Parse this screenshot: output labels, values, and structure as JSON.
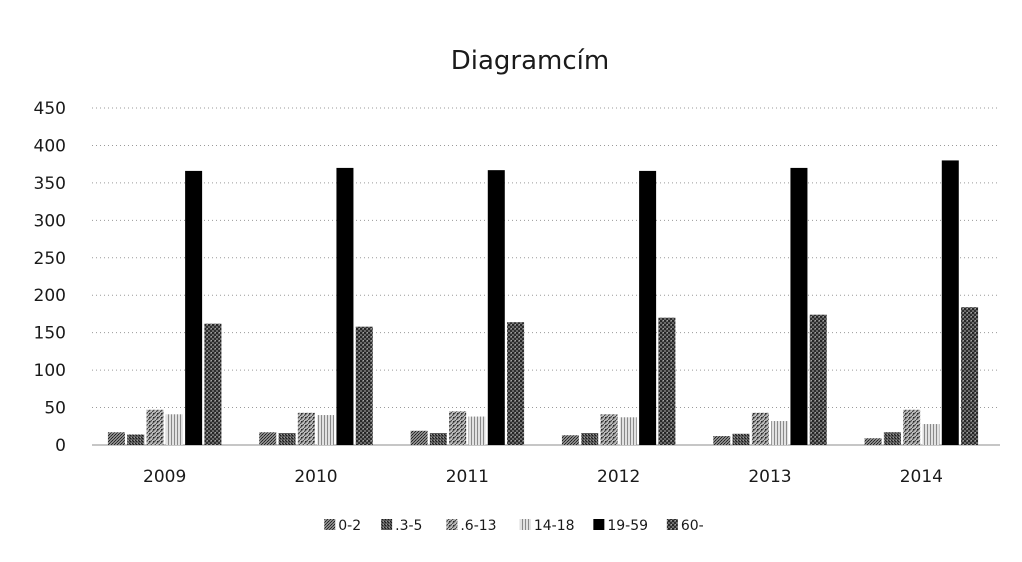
{
  "chart_data": {
    "type": "bar",
    "title": "Diagramcím",
    "categories": [
      "2009",
      "2010",
      "2011",
      "2012",
      "2013",
      "2014"
    ],
    "series": [
      {
        "name": "0-2",
        "values": [
          17,
          17,
          19,
          13,
          12,
          9
        ],
        "pattern": "dots",
        "color": "#6b6b6b"
      },
      {
        "name": ".3-5",
        "values": [
          14,
          16,
          16,
          16,
          15,
          17
        ],
        "pattern": "dots",
        "color": "#4a4a4a"
      },
      {
        "name": ".6-13",
        "values": [
          47,
          43,
          45,
          41,
          43,
          47
        ],
        "pattern": "hatch",
        "color": "#7a7a7a"
      },
      {
        "name": "14-18",
        "values": [
          41,
          40,
          38,
          37,
          32,
          28
        ],
        "pattern": "stripes",
        "color": "#a8a8a8"
      },
      {
        "name": "19-59",
        "values": [
          366,
          370,
          367,
          366,
          370,
          380
        ],
        "pattern": "solid",
        "color": "#000000"
      },
      {
        "name": "60-",
        "values": [
          162,
          158,
          164,
          170,
          174,
          184
        ],
        "pattern": "checker",
        "color": "#3a3a3a"
      }
    ],
    "yticks": [
      "0",
      "50",
      "100",
      "150",
      "200",
      "250",
      "300",
      "350",
      "400",
      "450"
    ],
    "ylim": [
      0,
      450
    ],
    "grid": true,
    "legend_position": "bottom"
  }
}
